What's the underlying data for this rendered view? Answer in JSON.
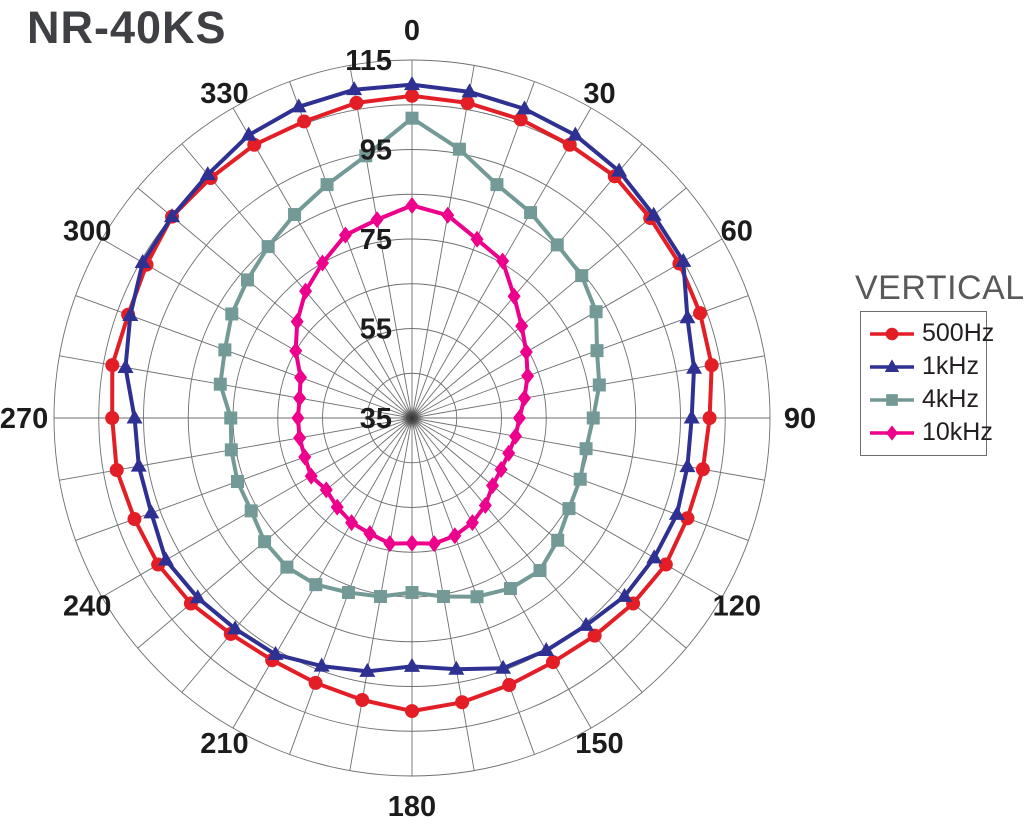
{
  "title": "NR-40KS",
  "legend": {
    "title": "VERTICAL",
    "items": [
      "500Hz",
      "1kHz",
      "4kHz",
      "10kHz"
    ]
  },
  "colors": {
    "background": "#ffffff",
    "grid": "#6d6e71",
    "tick_text": "#1c1c1c",
    "title_text": "#3f4043",
    "legend_title_text": "#58595b",
    "series_500hz": "#e31e26",
    "series_1khz": "#2e3192",
    "series_4khz": "#739a96",
    "series_10khz": "#ec008c"
  },
  "chart_data": {
    "type": "line",
    "subtype": "polar-directivity",
    "title": "NR-40KS",
    "orientation_label": "VERTICAL",
    "angle_unit": "degrees",
    "angle_start": "top",
    "angle_direction": "clockwise",
    "angle_step": 10,
    "angle_tick_labels": [
      "0",
      "30",
      "60",
      "90",
      "120",
      "150",
      "180",
      "210",
      "240",
      "270",
      "300",
      "330"
    ],
    "radial_axis": {
      "min": 35,
      "max": 115,
      "ring_step": 10,
      "tick_labels": [
        "35",
        "55",
        "75",
        "95",
        "115"
      ],
      "tick_values": [
        35,
        55,
        75,
        95,
        115
      ]
    },
    "grid": {
      "rings": true,
      "spokes_every_deg": 10
    },
    "legend_position": "right",
    "series": [
      {
        "id": "500hz",
        "name": "500Hz",
        "color": "#e31e26",
        "marker": "circle",
        "angles_deg": [
          0,
          10,
          20,
          30,
          40,
          50,
          60,
          70,
          80,
          90,
          100,
          110,
          120,
          130,
          140,
          150,
          160,
          170,
          180,
          190,
          200,
          210,
          220,
          230,
          240,
          250,
          260,
          270,
          280,
          290,
          300,
          310,
          320,
          330,
          340,
          350
        ],
        "values": [
          107,
          106.5,
          106,
          105.5,
          105.5,
          104.5,
          104,
          103.5,
          103,
          101.5,
          101,
          100.5,
          100.5,
          99.5,
          98.5,
          98,
          98.5,
          99.5,
          100.5,
          99,
          98,
          97.5,
          98,
          99.5,
          100.5,
          101,
          102,
          102,
          103,
          102.5,
          103.5,
          105,
          105,
          105.5,
          105.5,
          106.5
        ]
      },
      {
        "id": "1khz",
        "name": "1kHz",
        "color": "#2e3192",
        "marker": "triangle",
        "angles_deg": [
          0,
          10,
          20,
          30,
          40,
          50,
          60,
          70,
          80,
          90,
          100,
          110,
          120,
          130,
          140,
          150,
          160,
          170,
          180,
          190,
          200,
          210,
          220,
          230,
          240,
          250,
          260,
          270,
          280,
          290,
          300,
          310,
          320,
          330,
          340,
          350
        ],
        "values": [
          109.5,
          109,
          108.5,
          108,
          107,
          105.5,
          105,
          100.5,
          99,
          97.5,
          97.5,
          98,
          97.5,
          97,
          95.5,
          95,
          94.5,
          92,
          90.5,
          92.5,
          94,
          96,
          96.5,
          97.5,
          98.5,
          97,
          97,
          97,
          100,
          102,
          104.5,
          105,
          106,
          108,
          109,
          109.5
        ]
      },
      {
        "id": "4khz",
        "name": "4kHz",
        "color": "#739a96",
        "marker": "square",
        "angles_deg": [
          0,
          10,
          20,
          30,
          40,
          50,
          60,
          70,
          80,
          90,
          100,
          110,
          120,
          130,
          140,
          150,
          160,
          170,
          180,
          190,
          200,
          210,
          220,
          230,
          240,
          250,
          260,
          270,
          280,
          290,
          300,
          310,
          320,
          330,
          340,
          350
        ],
        "values": [
          102,
          96,
          90.5,
          88,
          85.5,
          84.5,
          82.5,
          79,
          77.5,
          75.5,
          74.5,
          75,
          75.5,
          77.5,
          79.5,
          79,
          77.5,
          75.5,
          74,
          75.5,
          76.5,
          78,
          78.5,
          78,
          76.5,
          76.5,
          76,
          75.5,
          78.5,
          79.5,
          81.5,
          83,
          85,
          87.5,
          90.5,
          94.5
        ]
      },
      {
        "id": "10khz",
        "name": "10kHz",
        "color": "#ec008c",
        "marker": "diamond",
        "angles_deg": [
          0,
          10,
          20,
          30,
          40,
          50,
          60,
          70,
          80,
          90,
          100,
          110,
          120,
          130,
          140,
          150,
          160,
          170,
          180,
          190,
          200,
          210,
          220,
          230,
          240,
          250,
          260,
          270,
          280,
          290,
          300,
          310,
          320,
          330,
          340,
          350
        ],
        "values": [
          82.5,
          81,
          77.5,
          75.5,
          70.5,
          67,
          64.5,
          62.5,
          60.5,
          59,
          58.5,
          58,
          58,
          58.5,
          60.5,
          62,
          63,
          63.5,
          63,
          63.5,
          62.5,
          62,
          61,
          60,
          61,
          60.5,
          60.5,
          60.5,
          60.5,
          61.5,
          65,
          68.5,
          72,
          75,
          78.5,
          80
        ]
      }
    ]
  }
}
